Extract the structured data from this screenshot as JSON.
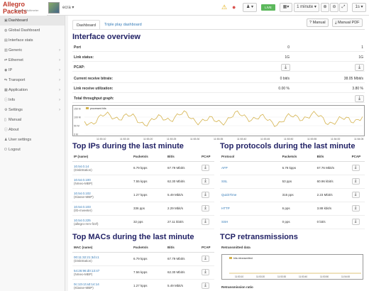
{
  "topbar": {
    "brand": "Allegro Packets",
    "brand_sub": "Network Multimeter",
    "host": "ecra",
    "live_badge": "LIVE",
    "interval": "1 minute",
    "refresh": "1s",
    "icons": [
      "warning-icon",
      "alert-icon",
      "user-icon",
      "calendar-icon",
      "zoom-in-icon",
      "zoom-out-icon",
      "zoom-fit-icon",
      "chevron-down-icon"
    ]
  },
  "sidebar": {
    "items": [
      {
        "label": "Dashboard",
        "icon": "dashboard-icon",
        "chevron": false,
        "active": true
      },
      {
        "label": "Global Dashboard",
        "icon": "globe-icon",
        "chevron": false,
        "active": false
      },
      {
        "label": "Interface stats",
        "icon": "interface-icon",
        "chevron": false,
        "active": false
      },
      {
        "label": "Generic",
        "icon": "generic-icon",
        "chevron": true,
        "active": false
      },
      {
        "label": "Ethernet",
        "icon": "ethernet-icon",
        "chevron": true,
        "active": false
      },
      {
        "label": "IP",
        "icon": "ip-icon",
        "chevron": true,
        "active": false
      },
      {
        "label": "Transport",
        "icon": "transport-icon",
        "chevron": true,
        "active": false
      },
      {
        "label": "Application",
        "icon": "application-icon",
        "chevron": true,
        "active": false
      },
      {
        "label": "Info",
        "icon": "info-icon",
        "chevron": true,
        "active": false
      },
      {
        "label": "Settings",
        "icon": "gear-icon",
        "chevron": true,
        "active": false
      },
      {
        "label": "Manual",
        "icon": "book-icon",
        "chevron": false,
        "active": false
      },
      {
        "label": "About",
        "icon": "about-icon",
        "chevron": false,
        "active": false
      },
      {
        "label": "User settings",
        "icon": "user-icon",
        "chevron": false,
        "active": false
      },
      {
        "label": "Logout",
        "icon": "logout-icon",
        "chevron": false,
        "active": false
      }
    ]
  },
  "main": {
    "tabs": [
      {
        "label": "Dashboard",
        "active": true
      },
      {
        "label": "Triple play dashboard",
        "active": false
      }
    ],
    "manual_button": "Manual",
    "manual_pdf_button": "Manual PDF",
    "interface_overview": {
      "title": "Interface overview",
      "rows": [
        {
          "label": "Port",
          "v0": "0",
          "v1": "1"
        },
        {
          "label": "Link status:",
          "v0": "1G",
          "v1": "1G"
        },
        {
          "label": "PCAP:",
          "v0": "",
          "v1": ""
        },
        {
          "label": "Current receive bitrate:",
          "v0": "0 bit/s",
          "v1": "38.05 Mbit/s"
        },
        {
          "label": "Link receive utilization:",
          "v0": "0.00 %",
          "v1": "3.80 %"
        },
        {
          "label": "Total throughput graph:",
          "v0": "",
          "v1": ""
        }
      ]
    },
    "throughput_chart": {
      "legend": "processed bits",
      "y_ticks": [
        "150 M",
        "100 M",
        "50 M",
        "0 M"
      ],
      "x_ticks": [
        "11:53:10",
        "11:53:15",
        "11:53:20",
        "11:53:25",
        "11:53:30",
        "11:53:35",
        "11:53:40",
        "11:53:45",
        "11:53:50",
        "11:53:55",
        "11:54:00",
        "11:54:05"
      ]
    },
    "top_ips": {
      "title": "Top IPs during the last minute",
      "headers": [
        "IP (name)",
        "Packets/s",
        "Bit/s",
        "PCAP"
      ],
      "rows": [
        {
          "ip": "10.54.0.14",
          "name": "(DiskStation)",
          "pps": "6.79 kpps",
          "bps": "67.79 Mbit/s"
        },
        {
          "ip": "10.54.0.100",
          "name": "(Nmeo-MBP)",
          "pps": "7.55 kpps",
          "bps": "62.30 Mbit/s"
        },
        {
          "ip": "10.54.0.102",
          "name": "(Klasse-MBP)",
          "pps": "1.27 kpps",
          "bps": "5.49 Mbit/s"
        },
        {
          "ip": "10.54.0.103",
          "name": "(lrb-mveeter)",
          "pps": "336 pps",
          "bps": "2.29 Mbit/s"
        },
        {
          "ip": "10.54.0.225",
          "name": "(allegro-mm-f22f)",
          "pps": "32 pps",
          "bps": "27.11 kbit/s"
        }
      ]
    },
    "top_protocols": {
      "title": "Top protocols during the last minute",
      "headers": [
        "Protocol",
        "Packets/s",
        "Bit/s",
        "PCAP"
      ],
      "rows": [
        {
          "proto": "AFP",
          "pps": "6.78 kpps",
          "bps": "67.76 Mbit/s"
        },
        {
          "proto": "SSL",
          "pps": "53 pps",
          "bps": "60.96 kbit/s"
        },
        {
          "proto": "QuickTime",
          "pps": "315 pps",
          "bps": "2.23 Mbit/s"
        },
        {
          "proto": "HTTP",
          "pps": "6 pps",
          "bps": "3.88 kbit/s"
        },
        {
          "proto": "SSH",
          "pps": "0 pps",
          "bps": "0 bit/s"
        }
      ]
    },
    "top_macs": {
      "title": "Top MACs during the last minute",
      "headers": [
        "MAC (name)",
        "Packets/s",
        "Bit/s",
        "PCAP"
      ],
      "rows": [
        {
          "mac": "00:11:32:21:3d:c1",
          "name": "(DiskStation)",
          "pps": "6.79 kpps",
          "bps": "67.79 Mbit/s"
        },
        {
          "mac": "54:26:96:d0:13:47",
          "name": "(Nmeo-MBP)",
          "pps": "7.56 kpps",
          "bps": "62.30 Mbit/s"
        },
        {
          "mac": "0c:13:c2:a3:14:14",
          "name": "(Klasse-MBP)",
          "pps": "1.27 kpps",
          "bps": "5.49 Mbit/s"
        }
      ]
    },
    "tcp": {
      "title": "TCP retransmissions",
      "data_label": "Retransmitted data",
      "ratio_label": "Retransmission ratio",
      "legend": "bits retransmitted",
      "x_ticks": [
        "11:53:10",
        "11:53:20",
        "11:53:30",
        "11:53:40",
        "11:53:50",
        "11:54:00"
      ]
    }
  }
}
